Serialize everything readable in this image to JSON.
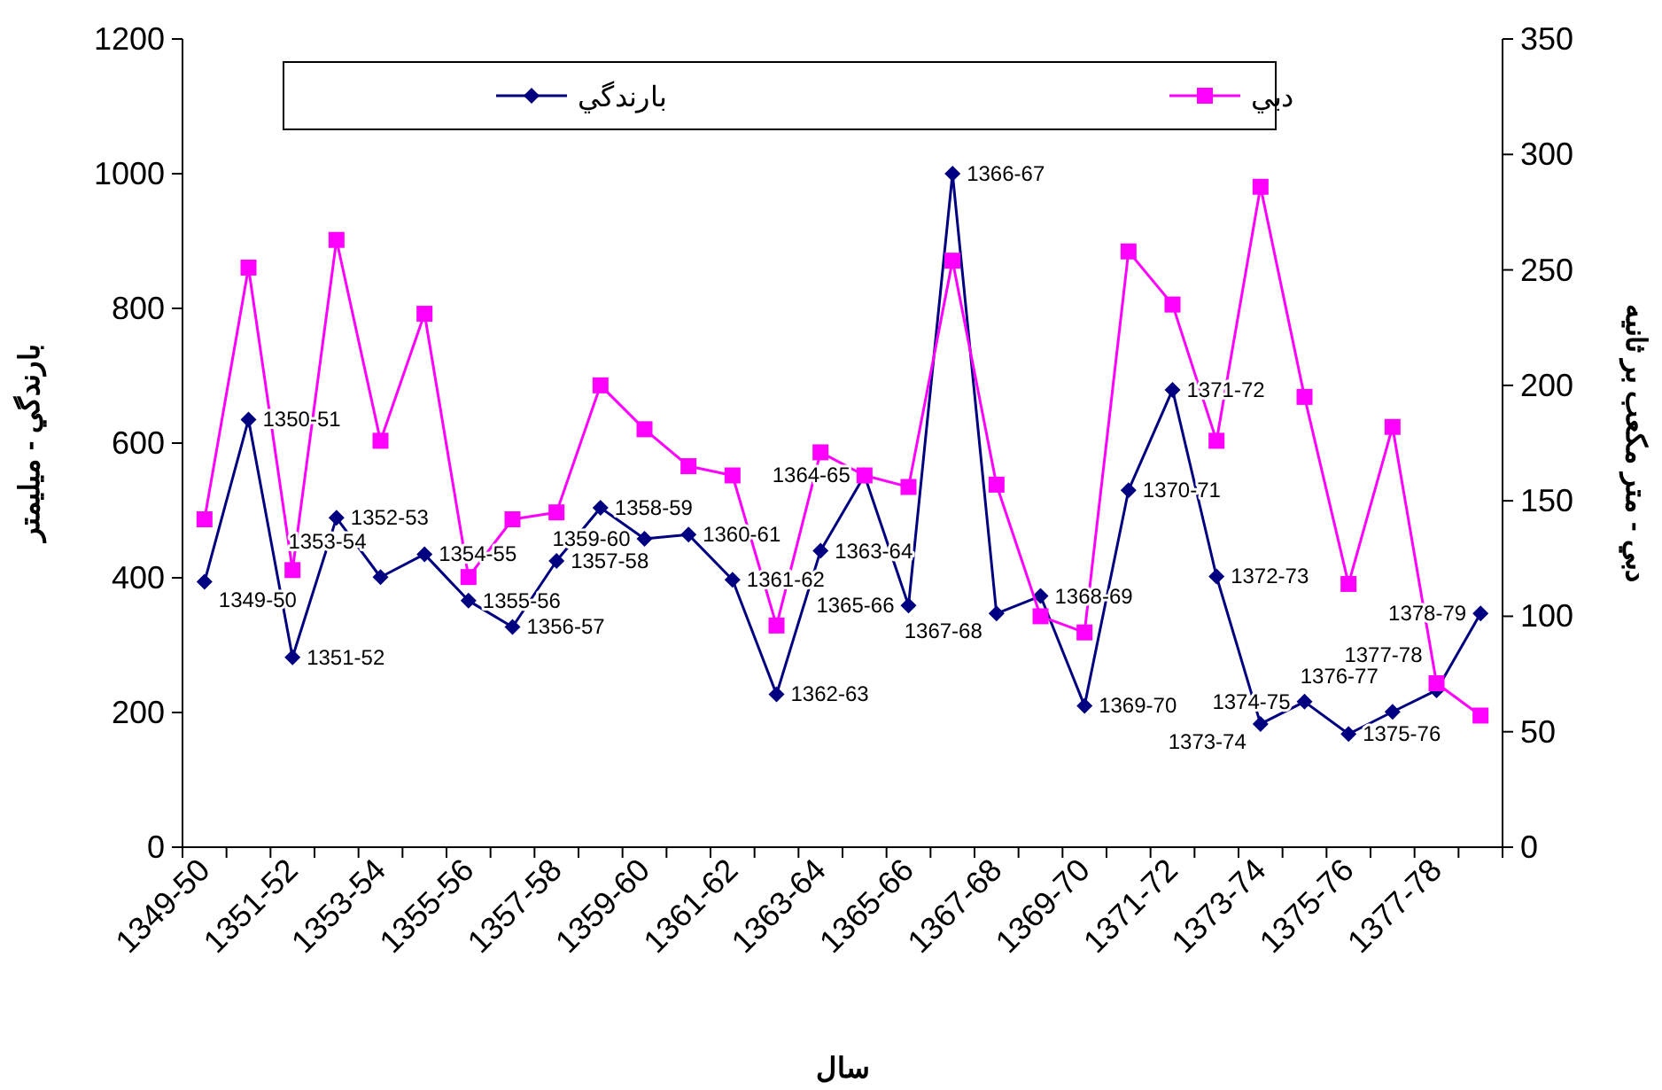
{
  "chart_data": {
    "type": "line",
    "xlabel": "سال",
    "ylabel": "بارندگي - ميليمتر",
    "y2label": "دبي - متر مكعب بر ثانيه",
    "categories": [
      "1349-50",
      null,
      "1351-52",
      null,
      "1353-54",
      null,
      "1355-56",
      null,
      "1357-58",
      null,
      "1359-60",
      null,
      "1361-62",
      null,
      "1363-64",
      null,
      "1365-66",
      null,
      "1367-68",
      null,
      "1369-70",
      null,
      "1371-72",
      null,
      "1373-74",
      null,
      "1375-76",
      null,
      "1377-78",
      null
    ],
    "series": [
      {
        "name": "بارندگي",
        "color": "#000080",
        "marker": "diamond",
        "values": [
          394,
          635,
          282,
          489,
          401,
          435,
          366,
          327,
          425,
          504,
          458,
          464,
          397,
          227,
          440,
          552,
          359,
          1000,
          347,
          373,
          210,
          530,
          679,
          402,
          183,
          216,
          168,
          201,
          233,
          347
        ],
        "value_labels": [
          "1349-50",
          "1350-51",
          "1351-52",
          "1352-53",
          "1353-54",
          "1354-55",
          "1355-56",
          "1356-57",
          "1357-58",
          "1358-59",
          "1359-60",
          "1360-61",
          "1361-62",
          "1362-63",
          "1363-64",
          "1364-65",
          "1365-66",
          "1366-67",
          "1367-68",
          "1368-69",
          "1369-70",
          "1370-71",
          "1371-72",
          "1372-73",
          "1373-74",
          "1374-75",
          "1375-76",
          "1376-77",
          "1377-78",
          "1378-79"
        ]
      },
      {
        "name": "دبي",
        "color": "#ff00ff",
        "marker": "square",
        "axis": "y2",
        "values": [
          142,
          251,
          120,
          263,
          176,
          231,
          117,
          142,
          145,
          200,
          181,
          165,
          161,
          96,
          171,
          161,
          156,
          254,
          157,
          100,
          93,
          258,
          235,
          176,
          286,
          195,
          114,
          182,
          71,
          57
        ]
      }
    ],
    "ylim": [
      0,
      1200
    ],
    "yticks": [
      0,
      200,
      400,
      600,
      800,
      1000,
      1200
    ],
    "y2lim": [
      0,
      350
    ],
    "y2ticks": [
      0,
      50,
      100,
      150,
      200,
      250,
      300,
      350
    ],
    "legend": "top",
    "grid": false,
    "line_style": "solid"
  }
}
